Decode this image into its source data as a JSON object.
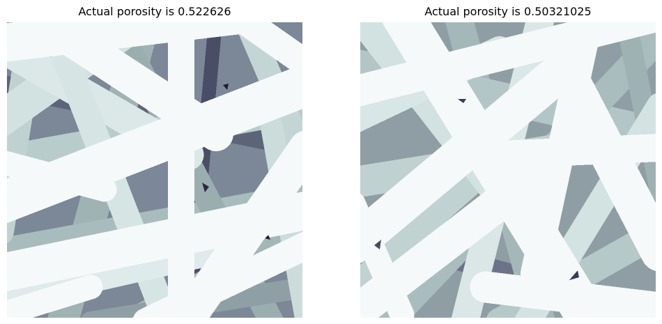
{
  "panels": [
    {
      "title": "Actual porosity is 0.522626"
    },
    {
      "title": "Actual porosity is 0.50321025"
    }
  ],
  "colors": {
    "fiber_light": "#f6f9f9",
    "fiber_mid": "#c9dcdb",
    "fiber_shadow": "#9fb2b4",
    "pore_mid": "#6f7a8c",
    "pore_dark": "#3d3d55"
  }
}
